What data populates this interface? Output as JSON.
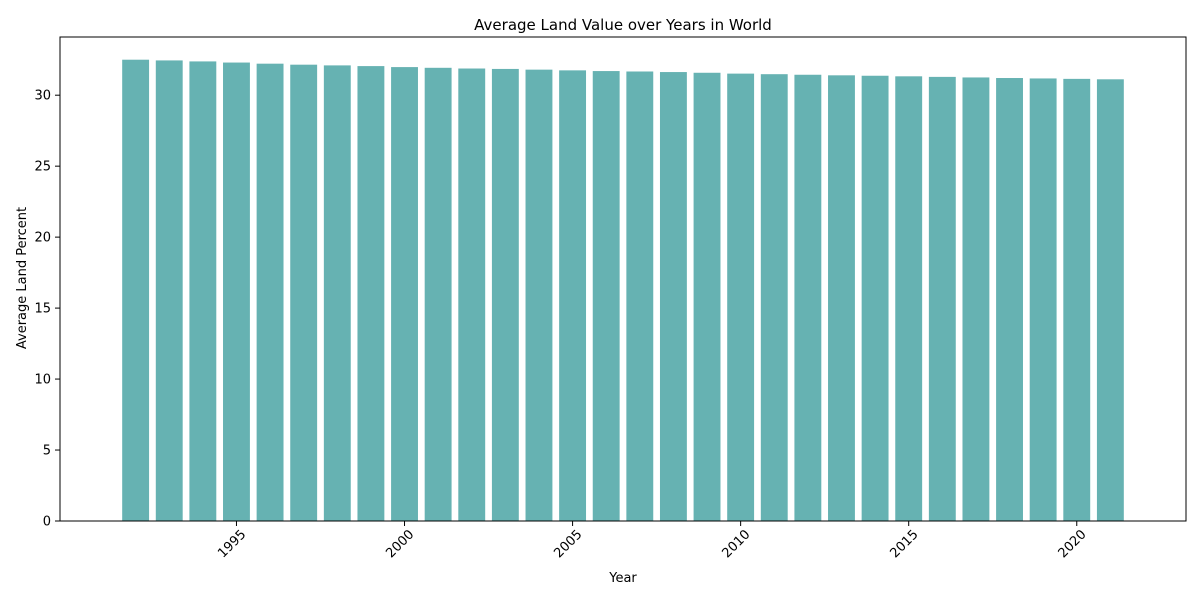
{
  "chart_data": {
    "type": "bar",
    "title": "Average Land Value over Years in World",
    "xlabel": "Year",
    "ylabel": "Average Land Percent",
    "x": [
      1992,
      1993,
      1994,
      1995,
      1996,
      1997,
      1998,
      1999,
      2000,
      2001,
      2002,
      2003,
      2004,
      2005,
      2006,
      2007,
      2008,
      2009,
      2010,
      2011,
      2012,
      2013,
      2014,
      2015,
      2016,
      2017,
      2018,
      2019,
      2020,
      2021
    ],
    "values": [
      32.5,
      32.45,
      32.38,
      32.3,
      32.22,
      32.15,
      32.1,
      32.05,
      31.98,
      31.93,
      31.88,
      31.85,
      31.8,
      31.75,
      31.7,
      31.67,
      31.63,
      31.58,
      31.52,
      31.48,
      31.44,
      31.4,
      31.37,
      31.33,
      31.29,
      31.25,
      31.21,
      31.18,
      31.15,
      31.12
    ],
    "xlim": [
      1989.75,
      2023.25
    ],
    "ylim": [
      0,
      34.1
    ],
    "xticks": [
      1995,
      2000,
      2005,
      2010,
      2015,
      2020
    ],
    "xtick_labels": [
      "1995",
      "2000",
      "2005",
      "2010",
      "2015",
      "2020"
    ],
    "yticks": [
      0,
      5,
      10,
      15,
      20,
      25,
      30
    ],
    "ytick_labels": [
      "0",
      "5",
      "10",
      "15",
      "20",
      "25",
      "30"
    ],
    "bar_color": "#66b2b2",
    "grid": false,
    "legend": "none"
  }
}
